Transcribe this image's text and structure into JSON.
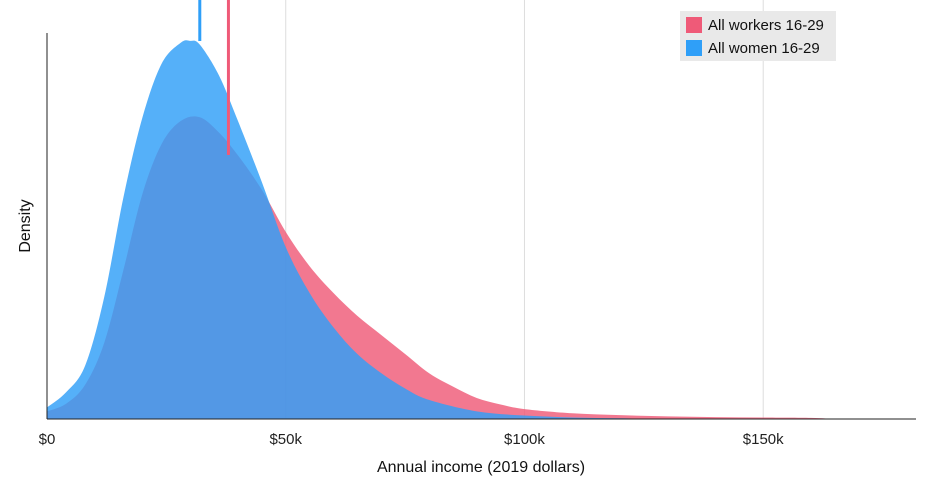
{
  "chart_data": {
    "type": "area",
    "xlabel": "Annual income (2019 dollars)",
    "ylabel": "Density",
    "xlim": [
      0,
      182000
    ],
    "ylim": [
      0,
      1
    ],
    "x_ticks": [
      {
        "value": 0,
        "label": "$0"
      },
      {
        "value": 50000,
        "label": "$50k"
      },
      {
        "value": 100000,
        "label": "$100k"
      },
      {
        "value": 150000,
        "label": "$150k"
      }
    ],
    "grid": "vertical",
    "legend_position": "top-right",
    "series": [
      {
        "name": "All workers 16-29",
        "color": "#ef5a78",
        "median_line": 38000,
        "x": [
          0,
          4000,
          8000,
          12000,
          16000,
          20000,
          24000,
          28000,
          32000,
          36000,
          40000,
          45000,
          50000,
          55000,
          60000,
          65000,
          70000,
          75000,
          80000,
          85000,
          90000,
          95000,
          100000,
          110000,
          120000,
          130000,
          140000,
          150000,
          160000,
          165000
        ],
        "values": [
          0.02,
          0.04,
          0.09,
          0.2,
          0.39,
          0.59,
          0.72,
          0.78,
          0.79,
          0.75,
          0.69,
          0.6,
          0.49,
          0.4,
          0.33,
          0.27,
          0.22,
          0.17,
          0.12,
          0.085,
          0.055,
          0.038,
          0.026,
          0.015,
          0.01,
          0.007,
          0.005,
          0.004,
          0.003,
          0.0
        ]
      },
      {
        "name": "All women 16-29",
        "color": "#2f9ff8",
        "median_line": 32000,
        "x": [
          0,
          4000,
          8000,
          12000,
          16000,
          20000,
          24000,
          28000,
          30000,
          32000,
          36000,
          40000,
          45000,
          50000,
          55000,
          60000,
          65000,
          70000,
          75000,
          80000,
          90000,
          100000,
          110000,
          120000,
          130000
        ],
        "values": [
          0.03,
          0.07,
          0.14,
          0.32,
          0.58,
          0.79,
          0.93,
          0.985,
          0.99,
          0.98,
          0.9,
          0.78,
          0.62,
          0.45,
          0.33,
          0.24,
          0.17,
          0.12,
          0.08,
          0.05,
          0.02,
          0.009,
          0.004,
          0.002,
          0.0
        ]
      }
    ]
  }
}
